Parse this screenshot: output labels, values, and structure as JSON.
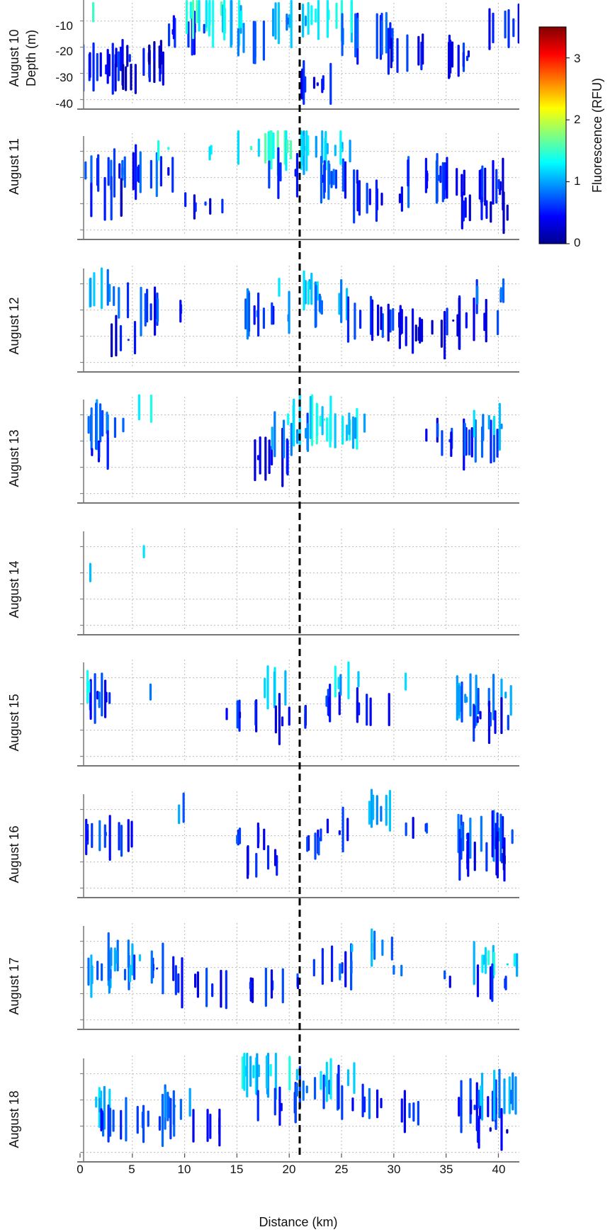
{
  "chart_data": {
    "type": "scatter",
    "description": "Fluorescence (RFU) vs distance (km) and depth (m) along a transect, one panel per day, August 10-18",
    "xlabel": "Distance (km)",
    "ylabel": "Depth (m)",
    "xlim": [
      0,
      42
    ],
    "ylim": [
      -42,
      -2
    ],
    "x_ticks": [
      0,
      5,
      10,
      15,
      20,
      25,
      30,
      35,
      40
    ],
    "x_tick_labels": [
      "0",
      "5",
      "10",
      "15",
      "20",
      "25",
      "30",
      "35",
      "40"
    ],
    "y_ticks": [
      -10,
      -20,
      -30,
      -40
    ],
    "y_tick_labels": [
      "-10",
      "-20",
      "-30",
      "-40"
    ],
    "grid": true,
    "reference_line": {
      "x": 21,
      "style": "dashed",
      "color": "#000000"
    },
    "colorbar": {
      "label": "Fluorescence (RFU)",
      "range": [
        0,
        3.5
      ],
      "ticks": [
        0,
        1,
        2,
        3
      ],
      "tick_labels": [
        "0",
        "1",
        "2",
        "3"
      ],
      "colormap": "jet",
      "stops": [
        "#00008f",
        "#0000ff",
        "#0080ff",
        "#00ffff",
        "#80ff80",
        "#ffff00",
        "#ff8000",
        "#ff0000",
        "#800000"
      ]
    },
    "panels": [
      {
        "label": "August 10",
        "clusters": [
          [
            0,
            8,
            -28,
            0.45,
            0.8
          ],
          [
            3,
            8,
            -25,
            0.35,
            0.8
          ],
          [
            3,
            6,
            -32,
            0.3,
            0.6
          ],
          [
            6,
            8,
            -22,
            0.3,
            0.6
          ],
          [
            8,
            12,
            -14,
            0.5,
            0.9
          ],
          [
            10,
            14,
            -6,
            1.4,
            1.0
          ],
          [
            12,
            16,
            -9,
            1.2,
            1.0
          ],
          [
            15,
            18,
            -18,
            0.7,
            0.8
          ],
          [
            18,
            22,
            -10,
            1.0,
            1.0
          ],
          [
            20,
            25,
            -34,
            0.4,
            0.8
          ],
          [
            22,
            26,
            -8,
            1.3,
            1.0
          ],
          [
            25,
            30,
            -16,
            0.7,
            0.9
          ],
          [
            29,
            33,
            -22,
            0.5,
            0.8
          ],
          [
            33,
            38,
            -24,
            0.45,
            0.8
          ],
          [
            38,
            42,
            -12,
            0.6,
            0.6
          ],
          [
            1,
            2,
            -8,
            1.4,
            0.3
          ]
        ]
      },
      {
        "label": "August 11",
        "clusters": [
          [
            0,
            9,
            -18,
            0.6,
            0.9
          ],
          [
            1,
            4,
            -28,
            0.4,
            0.6
          ],
          [
            7,
            9,
            -9,
            1.4,
            0.4
          ],
          [
            10,
            14,
            -30,
            0.4,
            0.6
          ],
          [
            12,
            14,
            -10,
            1.3,
            0.4
          ],
          [
            15,
            22,
            -8,
            1.4,
            1.0
          ],
          [
            18,
            21,
            -18,
            0.7,
            0.7
          ],
          [
            21,
            26,
            -9,
            1.2,
            1.0
          ],
          [
            23,
            28,
            -20,
            0.6,
            0.9
          ],
          [
            26,
            31,
            -28,
            0.45,
            0.8
          ],
          [
            30,
            36,
            -20,
            0.55,
            0.9
          ],
          [
            35,
            41,
            -23,
            0.5,
            0.9
          ],
          [
            36,
            41,
            -32,
            0.35,
            0.7
          ]
        ]
      },
      {
        "label": "August 12",
        "clusters": [
          [
            0,
            3,
            -12,
            1.0,
            0.8
          ],
          [
            3,
            5,
            -16,
            0.8,
            0.6
          ],
          [
            3,
            6,
            -31,
            0.35,
            0.7
          ],
          [
            5,
            10,
            -20,
            0.6,
            0.8
          ],
          [
            15,
            20,
            -22,
            0.7,
            0.9
          ],
          [
            19,
            23,
            -12,
            1.2,
            0.8
          ],
          [
            22,
            26,
            -18,
            0.9,
            0.9
          ],
          [
            25,
            31,
            -24,
            0.5,
            0.9
          ],
          [
            30,
            35,
            -28,
            0.4,
            0.8
          ],
          [
            35,
            40,
            -24,
            0.5,
            0.9
          ],
          [
            37,
            41,
            -14,
            0.8,
            0.5
          ]
        ]
      },
      {
        "label": "August 13",
        "clusters": [
          [
            0,
            5,
            -14,
            0.9,
            0.9
          ],
          [
            0,
            3,
            -24,
            0.5,
            0.6
          ],
          [
            5,
            7,
            -8,
            1.2,
            0.3
          ],
          [
            16,
            20,
            -26,
            0.4,
            0.9
          ],
          [
            18,
            22,
            -18,
            0.8,
            0.9
          ],
          [
            19,
            24,
            -12,
            1.3,
            0.9
          ],
          [
            23,
            27,
            -16,
            1.2,
            0.7
          ],
          [
            25,
            28,
            -14,
            1.1,
            0.5
          ],
          [
            32,
            35,
            -16,
            0.5,
            0.4
          ],
          [
            34,
            40,
            -20,
            0.6,
            0.9
          ],
          [
            37,
            41,
            -14,
            1.0,
            0.6
          ]
        ]
      },
      {
        "label": "August 14",
        "clusters": [
          [
            0,
            1,
            -20,
            1.3,
            0.5
          ],
          [
            6,
            7,
            -12,
            1.3,
            0.1
          ]
        ]
      },
      {
        "label": "August 15",
        "clusters": [
          [
            0,
            4,
            -18,
            0.6,
            0.9
          ],
          [
            0,
            2,
            -14,
            1.3,
            0.5
          ],
          [
            6,
            7,
            -16,
            0.7,
            0.3
          ],
          [
            14,
            18,
            -24,
            0.5,
            0.6
          ],
          [
            17,
            20,
            -14,
            1.3,
            0.6
          ],
          [
            18,
            22,
            -26,
            0.4,
            0.7
          ],
          [
            22,
            25,
            -20,
            0.6,
            0.7
          ],
          [
            24,
            27,
            -12,
            1.1,
            0.6
          ],
          [
            26,
            30,
            -22,
            0.5,
            0.6
          ],
          [
            31,
            32,
            -12,
            1.3,
            0.3
          ],
          [
            36,
            42,
            -18,
            0.9,
            1.0
          ],
          [
            37,
            41,
            -26,
            0.45,
            0.9
          ]
        ]
      },
      {
        "label": "August 16",
        "clusters": [
          [
            0,
            5,
            -20,
            0.6,
            0.9
          ],
          [
            8,
            10,
            -10,
            0.8,
            0.3
          ],
          [
            15,
            18,
            -20,
            0.6,
            0.8
          ],
          [
            16,
            20,
            -30,
            0.45,
            0.6
          ],
          [
            20,
            23,
            -24,
            0.5,
            0.7
          ],
          [
            23,
            26,
            -18,
            0.6,
            0.7
          ],
          [
            26,
            30,
            -10,
            1.0,
            0.7
          ],
          [
            31,
            34,
            -18,
            0.6,
            0.5
          ],
          [
            36,
            42,
            -20,
            0.7,
            1.0
          ],
          [
            36,
            41,
            -28,
            0.45,
            0.9
          ]
        ]
      },
      {
        "label": "August 17",
        "clusters": [
          [
            0,
            5,
            -22,
            0.9,
            0.9
          ],
          [
            2,
            6,
            -16,
            1.0,
            0.8
          ],
          [
            5,
            9,
            -20,
            0.6,
            0.7
          ],
          [
            9,
            12,
            -26,
            0.5,
            0.6
          ],
          [
            12,
            18,
            -28,
            0.5,
            0.5
          ],
          [
            18,
            22,
            -26,
            0.5,
            0.5
          ],
          [
            22,
            27,
            -20,
            0.6,
            0.6
          ],
          [
            26,
            30,
            -12,
            0.9,
            0.6
          ],
          [
            30,
            32,
            -20,
            0.6,
            0.4
          ],
          [
            34,
            37,
            -24,
            0.6,
            0.3
          ],
          [
            37,
            42,
            -18,
            1.2,
            0.8
          ],
          [
            38,
            41,
            -26,
            0.5,
            0.6
          ]
        ]
      },
      {
        "label": "August 18",
        "clusters": [
          [
            0,
            3,
            -22,
            1.0,
            0.8
          ],
          [
            2,
            9,
            -28,
            0.6,
            0.9
          ],
          [
            7,
            11,
            -22,
            0.8,
            0.8
          ],
          [
            10,
            14,
            -30,
            0.45,
            0.5
          ],
          [
            15,
            21,
            -10,
            1.2,
            1.0
          ],
          [
            17,
            21,
            -22,
            0.6,
            0.7
          ],
          [
            20,
            25,
            -16,
            0.7,
            0.8
          ],
          [
            23,
            27,
            -12,
            1.3,
            0.6
          ],
          [
            25,
            29,
            -22,
            0.6,
            0.7
          ],
          [
            29,
            33,
            -24,
            0.5,
            0.5
          ],
          [
            35,
            40,
            -22,
            0.5,
            1.0
          ],
          [
            37,
            42,
            -18,
            1.0,
            0.8
          ],
          [
            38,
            41,
            -32,
            0.35,
            0.6
          ]
        ]
      }
    ]
  }
}
